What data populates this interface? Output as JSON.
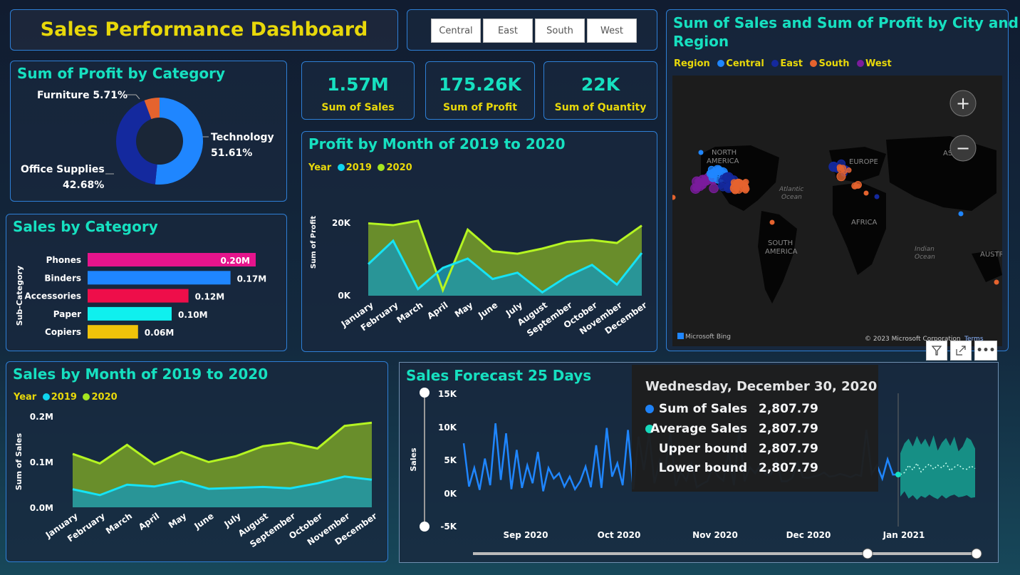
{
  "dashboard_title": "Sales Performance Dashboard",
  "slicer": [
    "Central",
    "East",
    "South",
    "West"
  ],
  "kpis": [
    {
      "value": "1.57M",
      "label": "Sum of Sales"
    },
    {
      "value": "175.26K",
      "label": "Sum of Profit"
    },
    {
      "value": "22K",
      "label": "Sum of Quantity"
    }
  ],
  "donut": {
    "title": "Sum of Profit by Category",
    "labels": [
      "Furniture 5.71%",
      "Technology",
      "51.61%",
      "Office Supplies",
      "42.68%"
    ],
    "colors": [
      "#e5632e",
      "#1f86ff",
      "#14299e"
    ]
  },
  "bar": {
    "title": "Sales by Category",
    "ylabel": "Sub-Category"
  },
  "profit": {
    "title": "Profit by Month of 2019 to 2020",
    "ylabel": "Sum of Profit",
    "yticks": [
      "20K",
      "0K"
    ]
  },
  "salesmonth": {
    "title": "Sales by Month of 2019 to 2020",
    "ylabel": "Sum of Sales",
    "yticks": [
      "0.2M",
      "0.1M",
      "0.0M"
    ]
  },
  "legend": {
    "year": "Year",
    "y2019": "2019",
    "y2020": "2020"
  },
  "map": {
    "title1": "Sum of Sales and Sum of Profit by City and",
    "title2": "Region",
    "legend_title": "Region",
    "regions": [
      "Central",
      "East",
      "South",
      "West"
    ],
    "region_colors": [
      "#1f86ff",
      "#14299e",
      "#e5632e",
      "#7a1c9c"
    ],
    "place_labels": [
      "NORTH",
      "AMERICA",
      "EUROPE",
      "ASIA",
      "Atlantic",
      "Ocean",
      "AFRICA",
      "SOUTH",
      "AMERICA",
      "Indian",
      "Ocean",
      "AUSTRA"
    ],
    "bing": "Microsoft Bing",
    "copyright": "© 2023 Microsoft Corporation",
    "terms": "Terms",
    "zoom_in": "+",
    "zoom_out": "−"
  },
  "forecast": {
    "title": "Sales Forecast 25 Days",
    "ylabel": "Sales",
    "yticks": [
      "15K",
      "10K",
      "5K",
      "0K",
      "-5K"
    ],
    "xticks": [
      "Sep 2020",
      "Oct 2020",
      "Nov 2020",
      "Dec 2020",
      "Jan 2021"
    ]
  },
  "tooltip": {
    "date": "Wednesday, December 30, 2020",
    "rows": [
      {
        "label": "Sum of Sales",
        "value": "2,807.79",
        "color": "#1f86ff"
      },
      {
        "label": "Average Sales",
        "value": "2,807.79",
        "color": "#16e0c0"
      },
      {
        "label": "Upper bound",
        "value": "2,807.79"
      },
      {
        "label": "Lower bound",
        "value": "2,807.79"
      }
    ]
  },
  "toolbar": {
    "filter_icon": "filter-icon",
    "focus_icon": "focus-mode-icon",
    "more_icon": "more-options-icon"
  },
  "chart_data": [
    {
      "type": "pie",
      "title": "Sum of Profit by Category",
      "categories": [
        "Technology",
        "Office Supplies",
        "Furniture"
      ],
      "values": [
        51.61,
        42.68,
        5.71
      ]
    },
    {
      "type": "bar",
      "title": "Sales by Category",
      "ylabel": "Sub-Category",
      "categories": [
        "Phones",
        "Binders",
        "Accessories",
        "Paper",
        "Copiers"
      ],
      "values": [
        0.2,
        0.17,
        0.12,
        0.1,
        0.06
      ],
      "labels": [
        "0.20M",
        "0.17M",
        "0.12M",
        "0.10M",
        "0.06M"
      ],
      "colors": [
        "#e6148c",
        "#1f86ff",
        "#ee0e4a",
        "#0ff0ee",
        "#f0c30a"
      ],
      "xlim": [
        0,
        0.2
      ]
    },
    {
      "type": "area",
      "title": "Profit by Month of 2019 to 2020",
      "ylabel": "Sum of Profit",
      "categories": [
        "January",
        "February",
        "March",
        "April",
        "May",
        "June",
        "July",
        "August",
        "September",
        "October",
        "November",
        "December"
      ],
      "series": [
        {
          "name": "2019",
          "values": [
            8500,
            14800,
            1800,
            7500,
            10000,
            4500,
            6200,
            900,
            5200,
            8300,
            3000,
            11500
          ]
        },
        {
          "name": "2020",
          "values": [
            19500,
            19000,
            20200,
            1500,
            17800,
            12000,
            11300,
            12700,
            14500,
            15000,
            14200,
            18900
          ]
        }
      ],
      "ylim": [
        0,
        24000
      ]
    },
    {
      "type": "area",
      "title": "Sales by Month of 2019 to 2020",
      "ylabel": "Sum of Sales",
      "categories": [
        "January",
        "February",
        "March",
        "April",
        "May",
        "June",
        "July",
        "August",
        "September",
        "October",
        "November",
        "December"
      ],
      "series": [
        {
          "name": "2019",
          "values": [
            0.04,
            0.027,
            0.05,
            0.046,
            0.058,
            0.041,
            0.043,
            0.045,
            0.042,
            0.053,
            0.068,
            0.061
          ]
        },
        {
          "name": "2020",
          "values": [
            0.118,
            0.097,
            0.138,
            0.095,
            0.122,
            0.1,
            0.113,
            0.135,
            0.143,
            0.13,
            0.18,
            0.187
          ]
        }
      ],
      "ylim": [
        0,
        0.2
      ]
    },
    {
      "type": "line",
      "title": "Sales Forecast 25 Days",
      "ylabel": "Sales",
      "xticks": [
        "Sep 2020",
        "Oct 2020",
        "Nov 2020",
        "Dec 2020",
        "Jan 2021"
      ],
      "series": [
        {
          "name": "Sum of Sales",
          "values": [
            7500,
            1000,
            3800,
            500,
            5200,
            1200,
            10500,
            2000,
            9000,
            600,
            6500,
            800,
            4200,
            1500,
            6200,
            300,
            3800,
            2200,
            3000,
            1000,
            2500,
            600,
            1800,
            4000,
            900,
            7200,
            800,
            9800,
            2500,
            4500,
            1200,
            9500,
            600,
            8500,
            3500,
            9000,
            1500,
            5000,
            3500,
            9000,
            1100,
            3200,
            1900,
            4500,
            900,
            1400,
            1800,
            4000,
            2500,
            1900,
            6200,
            1200,
            9700,
            1800,
            3900,
            3000,
            4300,
            2800,
            2800,
            5000,
            1800,
            1800,
            2300,
            4600,
            2400,
            2300,
            2500,
            2700,
            3100,
            2500,
            2600,
            2900,
            2700,
            2400,
            2800,
            2600,
            9500,
            2900,
            4200,
            2200,
            5100,
            2800,
            2807.79
          ]
        },
        {
          "name": "Forecast upper",
          "values": [
            6000,
            7500,
            8200,
            7000,
            8600,
            7300,
            8200,
            6900,
            8700,
            6400,
            7600,
            8300,
            7100,
            8500,
            6300,
            7000,
            8400,
            8000,
            6700
          ]
        },
        {
          "name": "Forecast lower",
          "values": [
            -500,
            300,
            -800,
            -300,
            -1000,
            -400,
            -700,
            -200,
            -600,
            -900,
            -300,
            -800,
            -400,
            -200,
            -600,
            -500,
            -300,
            -700,
            -600
          ]
        },
        {
          "name": "Forecast",
          "values": [
            2807.79,
            3100,
            4200,
            3500,
            4500,
            3200,
            3900,
            4400,
            3600,
            4200,
            3800,
            4500,
            3400,
            3900,
            4300,
            3700,
            3600,
            4100,
            3700
          ]
        }
      ],
      "ylim": [
        -5000,
        15000
      ]
    }
  ]
}
